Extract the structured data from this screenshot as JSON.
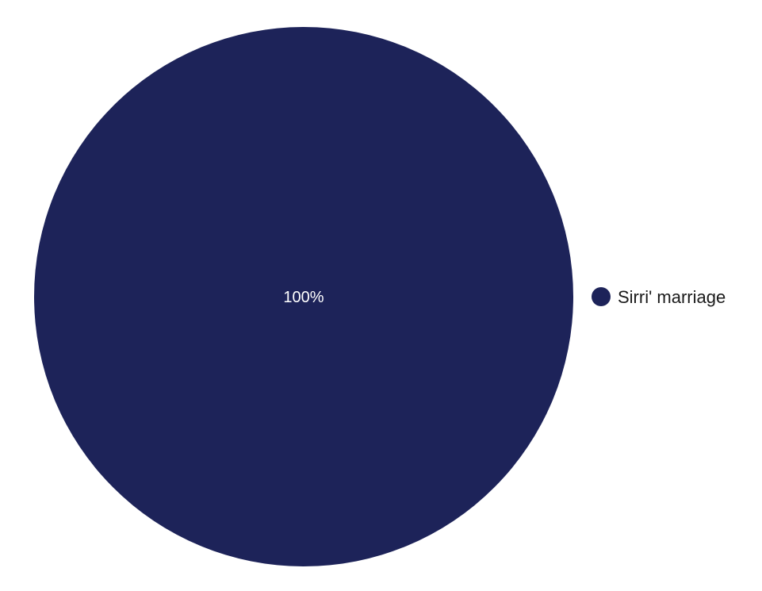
{
  "chart_data": {
    "type": "pie",
    "slices": [
      {
        "label": "Sirri' marriage",
        "value": 100,
        "display": "100%",
        "color": "#1d2359"
      }
    ],
    "legend": {
      "position": "right"
    }
  }
}
